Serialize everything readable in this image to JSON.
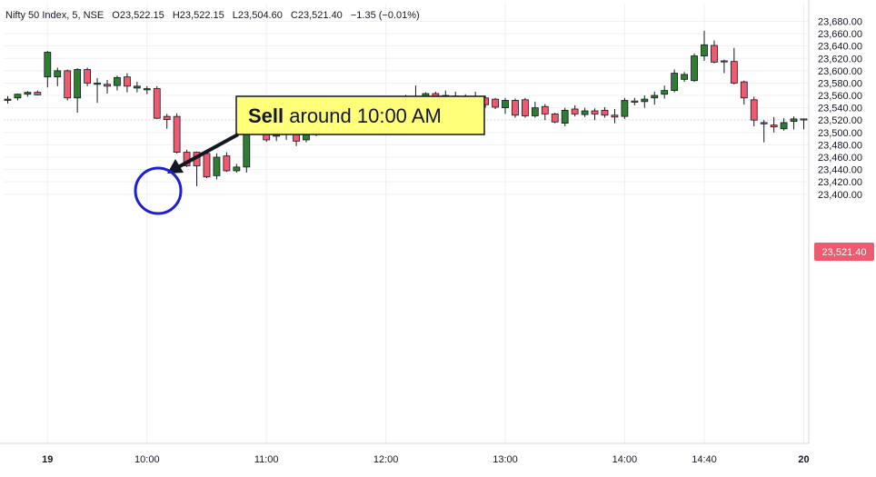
{
  "header": {
    "symbol": "Nifty 50 Index, 5, NSE",
    "open": "O23,522.15",
    "high": "H23,522.15",
    "low": "L23,504.60",
    "close": "C23,521.40",
    "change": "−1.35 (−0.01%)"
  },
  "annotation": {
    "bold": "Sell",
    "text": " around 10:00 AM"
  },
  "price_tag": "23,521.40",
  "colors": {
    "up": "#2f7d32",
    "down": "#ef5a6f",
    "wick": "#131722",
    "circle": "#1e1ed2",
    "callout_bg": "#ffff7a",
    "price_tag_bg": "#ef5a6f"
  },
  "chart_data": {
    "type": "candlestick",
    "interval_minutes": 5,
    "ylim": [
      23400,
      23690
    ],
    "y_ticks": [
      "23,400.00",
      "23,420.00",
      "23,440.00",
      "23,460.00",
      "23,480.00",
      "23,500.00",
      "23,520.00",
      "23,540.00",
      "23,560.00",
      "23,580.00",
      "23,600.00",
      "23,620.00",
      "23,640.00",
      "23,660.00",
      "23,680.00"
    ],
    "y_tick_values": [
      23400,
      23420,
      23440,
      23460,
      23480,
      23500,
      23520,
      23540,
      23560,
      23580,
      23600,
      23620,
      23640,
      23660,
      23680
    ],
    "x_ticks": [
      {
        "label": "19",
        "index": 4
      },
      {
        "label": "10:00",
        "index": 14
      },
      {
        "label": "11:00",
        "index": 26
      },
      {
        "label": "12:00",
        "index": 38
      },
      {
        "label": "13:00",
        "index": 50
      },
      {
        "label": "14:00",
        "index": 62
      },
      {
        "label": "14:40",
        "index": 70
      },
      {
        "label": "20",
        "index": 80
      }
    ],
    "candles": [
      {
        "o": 23552,
        "h": 23559,
        "l": 23547,
        "c": 23554
      },
      {
        "o": 23556,
        "h": 23563,
        "l": 23552,
        "c": 23562
      },
      {
        "o": 23562,
        "h": 23567,
        "l": 23558,
        "c": 23565
      },
      {
        "o": 23565,
        "h": 23568,
        "l": 23560,
        "c": 23561
      },
      {
        "o": 23590,
        "h": 23632,
        "l": 23573,
        "c": 23630
      },
      {
        "o": 23590,
        "h": 23605,
        "l": 23575,
        "c": 23600
      },
      {
        "o": 23600,
        "h": 23602,
        "l": 23552,
        "c": 23556
      },
      {
        "o": 23556,
        "h": 23604,
        "l": 23532,
        "c": 23602
      },
      {
        "o": 23602,
        "h": 23605,
        "l": 23575,
        "c": 23580
      },
      {
        "o": 23578,
        "h": 23588,
        "l": 23548,
        "c": 23580
      },
      {
        "o": 23578,
        "h": 23585,
        "l": 23563,
        "c": 23575
      },
      {
        "o": 23576,
        "h": 23592,
        "l": 23568,
        "c": 23589
      },
      {
        "o": 23590,
        "h": 23596,
        "l": 23565,
        "c": 23575
      },
      {
        "o": 23572,
        "h": 23582,
        "l": 23565,
        "c": 23575
      },
      {
        "o": 23569,
        "h": 23575,
        "l": 23562,
        "c": 23571
      },
      {
        "o": 23571,
        "h": 23575,
        "l": 23522,
        "c": 23523
      },
      {
        "o": 23526,
        "h": 23530,
        "l": 23506,
        "c": 23521
      },
      {
        "o": 23526,
        "h": 23531,
        "l": 23466,
        "c": 23468
      },
      {
        "o": 23468,
        "h": 23472,
        "l": 23444,
        "c": 23446
      },
      {
        "o": 23468,
        "h": 23469,
        "l": 23413,
        "c": 23446
      },
      {
        "o": 23466,
        "h": 23470,
        "l": 23426,
        "c": 23428
      },
      {
        "o": 23430,
        "h": 23466,
        "l": 23424,
        "c": 23460
      },
      {
        "o": 23462,
        "h": 23468,
        "l": 23436,
        "c": 23438
      },
      {
        "o": 23438,
        "h": 23449,
        "l": 23435,
        "c": 23444
      },
      {
        "o": 23444,
        "h": 23514,
        "l": 23435,
        "c": 23510
      },
      {
        "o": 23510,
        "h": 23522,
        "l": 23503,
        "c": 23520
      },
      {
        "o": 23520,
        "h": 23522,
        "l": 23485,
        "c": 23488
      },
      {
        "o": 23494,
        "h": 23510,
        "l": 23486,
        "c": 23504
      },
      {
        "o": 23504,
        "h": 23513,
        "l": 23488,
        "c": 23500
      },
      {
        "o": 23502,
        "h": 23509,
        "l": 23478,
        "c": 23486
      },
      {
        "o": 23488,
        "h": 23510,
        "l": 23484,
        "c": 23503
      },
      {
        "o": 23500,
        "h": 23509,
        "l": 23494,
        "c": 23502
      },
      {
        "o": 23502,
        "h": 23511,
        "l": 23498,
        "c": 23506
      },
      {
        "o": 23506,
        "h": 23542,
        "l": 23503,
        "c": 23541
      },
      {
        "o": 23541,
        "h": 23547,
        "l": 23535,
        "c": 23536
      },
      {
        "o": 23537,
        "h": 23540,
        "l": 23527,
        "c": 23533
      },
      {
        "o": 23533,
        "h": 23537,
        "l": 23525,
        "c": 23533
      },
      {
        "o": 23533,
        "h": 23540,
        "l": 23526,
        "c": 23534
      },
      {
        "o": 23531,
        "h": 23547,
        "l": 23525,
        "c": 23544
      },
      {
        "o": 23546,
        "h": 23553,
        "l": 23539,
        "c": 23547
      },
      {
        "o": 23544,
        "h": 23561,
        "l": 23540,
        "c": 23558
      },
      {
        "o": 23558,
        "h": 23576,
        "l": 23542,
        "c": 23546
      },
      {
        "o": 23546,
        "h": 23565,
        "l": 23540,
        "c": 23563
      },
      {
        "o": 23563,
        "h": 23566,
        "l": 23549,
        "c": 23553
      },
      {
        "o": 23554,
        "h": 23568,
        "l": 23550,
        "c": 23560
      },
      {
        "o": 23559,
        "h": 23566,
        "l": 23555,
        "c": 23557
      },
      {
        "o": 23556,
        "h": 23562,
        "l": 23545,
        "c": 23558
      },
      {
        "o": 23558,
        "h": 23566,
        "l": 23541,
        "c": 23545
      },
      {
        "o": 23556,
        "h": 23560,
        "l": 23540,
        "c": 23545
      },
      {
        "o": 23554,
        "h": 23556,
        "l": 23538,
        "c": 23541
      },
      {
        "o": 23540,
        "h": 23556,
        "l": 23530,
        "c": 23552
      },
      {
        "o": 23552,
        "h": 23555,
        "l": 23524,
        "c": 23528
      },
      {
        "o": 23553,
        "h": 23556,
        "l": 23524,
        "c": 23527
      },
      {
        "o": 23527,
        "h": 23550,
        "l": 23524,
        "c": 23540
      },
      {
        "o": 23542,
        "h": 23546,
        "l": 23520,
        "c": 23530
      },
      {
        "o": 23530,
        "h": 23532,
        "l": 23515,
        "c": 23517
      },
      {
        "o": 23515,
        "h": 23540,
        "l": 23510,
        "c": 23536
      },
      {
        "o": 23538,
        "h": 23544,
        "l": 23526,
        "c": 23530
      },
      {
        "o": 23529,
        "h": 23540,
        "l": 23525,
        "c": 23535
      },
      {
        "o": 23535,
        "h": 23539,
        "l": 23520,
        "c": 23530
      },
      {
        "o": 23536,
        "h": 23541,
        "l": 23524,
        "c": 23528
      },
      {
        "o": 23528,
        "h": 23538,
        "l": 23515,
        "c": 23525
      },
      {
        "o": 23526,
        "h": 23556,
        "l": 23522,
        "c": 23552
      },
      {
        "o": 23551,
        "h": 23556,
        "l": 23544,
        "c": 23549
      },
      {
        "o": 23550,
        "h": 23560,
        "l": 23540,
        "c": 23554
      },
      {
        "o": 23556,
        "h": 23566,
        "l": 23545,
        "c": 23560
      },
      {
        "o": 23562,
        "h": 23576,
        "l": 23555,
        "c": 23568
      },
      {
        "o": 23568,
        "h": 23602,
        "l": 23565,
        "c": 23596
      },
      {
        "o": 23586,
        "h": 23598,
        "l": 23582,
        "c": 23594
      },
      {
        "o": 23584,
        "h": 23628,
        "l": 23582,
        "c": 23624
      },
      {
        "o": 23624,
        "h": 23665,
        "l": 23616,
        "c": 23642
      },
      {
        "o": 23641,
        "h": 23649,
        "l": 23612,
        "c": 23614
      },
      {
        "o": 23616,
        "h": 23618,
        "l": 23596,
        "c": 23615
      },
      {
        "o": 23615,
        "h": 23637,
        "l": 23578,
        "c": 23580
      },
      {
        "o": 23582,
        "h": 23584,
        "l": 23545,
        "c": 23556
      },
      {
        "o": 23553,
        "h": 23558,
        "l": 23510,
        "c": 23520
      },
      {
        "o": 23516,
        "h": 23520,
        "l": 23484,
        "c": 23514
      },
      {
        "o": 23512,
        "h": 23525,
        "l": 23500,
        "c": 23509
      },
      {
        "o": 23506,
        "h": 23523,
        "l": 23503,
        "c": 23516
      },
      {
        "o": 23518,
        "h": 23526,
        "l": 23505,
        "c": 23522
      },
      {
        "o": 23522,
        "h": 23522,
        "l": 23505,
        "c": 23521
      }
    ]
  }
}
